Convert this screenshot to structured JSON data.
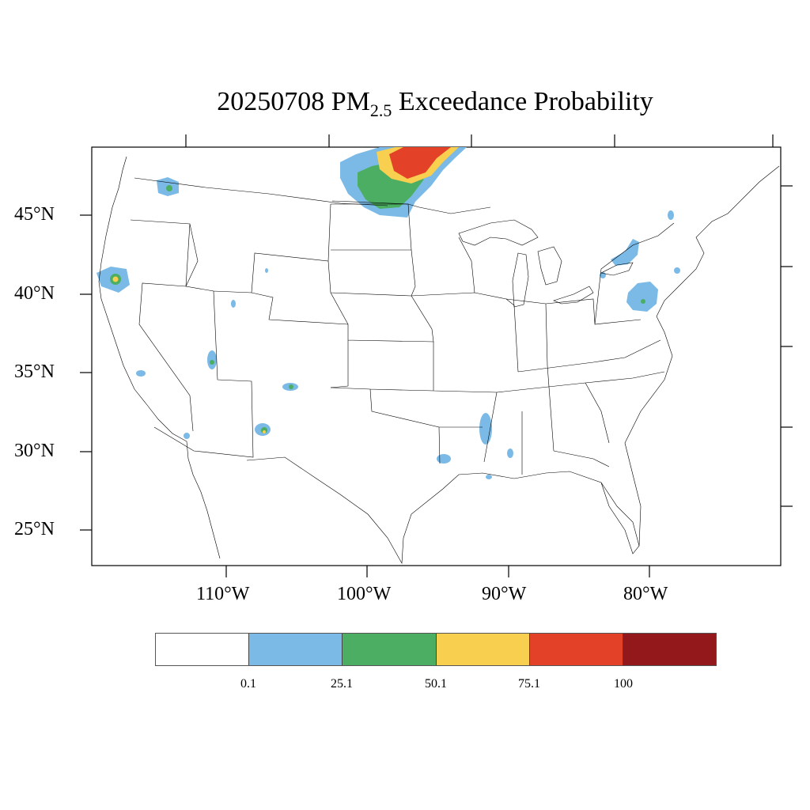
{
  "title": {
    "prefix": "20250708 PM",
    "subscript": "2.5",
    "suffix": " Exceedance Probability"
  },
  "lat_labels": [
    "45°N",
    "40°N",
    "35°N",
    "30°N",
    "25°N"
  ],
  "lon_labels": [
    "110°W",
    "100°W",
    "90°W",
    "80°W"
  ],
  "colorbar": {
    "colors": [
      "#ffffff",
      "#7bbae6",
      "#4bae62",
      "#f9cf50",
      "#e34228",
      "#93181c"
    ],
    "labels": [
      "0.1",
      "25.1",
      "50.1",
      "75.1",
      "100"
    ]
  },
  "probability_areas": [
    "northern Minnesota / Canada border",
    "northern Idaho",
    "northern California / Oregon border",
    "northern Arizona",
    "northern New Mexico",
    "southern New Mexico",
    "southern Arizona",
    "eastern Texas / Louisiana",
    "Mississippi River",
    "New York / Lake Ontario",
    "Pennsylvania"
  ]
}
